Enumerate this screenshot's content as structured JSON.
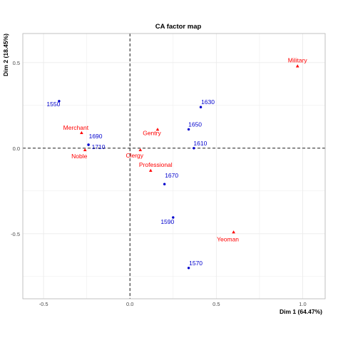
{
  "chart_data": {
    "type": "scatter",
    "title": "CA factor map",
    "xlabel": "Dim 1 (64.47%)",
    "ylabel": "Dim 2 (18.45%)",
    "xlim": [
      -0.62,
      1.13
    ],
    "ylim": [
      -0.88,
      0.67
    ],
    "x_ticks": [
      -0.5,
      0.0,
      0.5,
      1.0
    ],
    "x_tick_labels": [
      "-0.5",
      "0.0",
      "0.5",
      "1.0"
    ],
    "y_ticks": [
      -0.5,
      0.0,
      0.5
    ],
    "y_tick_labels": [
      "-0.5",
      "0.0",
      "0.5"
    ],
    "grid": true,
    "reference_lines": {
      "x": 0,
      "y": 0,
      "style": "dashed"
    },
    "colors": {
      "rows": "#0000cd",
      "columns": "#ff0000",
      "grid": "#ebebeb",
      "panel_border": "#b3b3b3"
    },
    "series": [
      {
        "marker": "circle",
        "color": "#0000cd",
        "points": [
          {
            "label": "1550",
            "x": -0.41,
            "y": 0.275
          },
          {
            "label": "1690",
            "x": -0.24,
            "y": 0.02
          },
          {
            "label": "1710",
            "x": -0.24,
            "y": 0.02
          },
          {
            "label": "1630",
            "x": 0.41,
            "y": 0.24
          },
          {
            "label": "1650",
            "x": 0.34,
            "y": 0.11
          },
          {
            "label": "1610",
            "x": 0.37,
            "y": 0.0
          },
          {
            "label": "1670",
            "x": 0.2,
            "y": -0.21
          },
          {
            "label": "1590",
            "x": 0.25,
            "y": -0.405
          },
          {
            "label": "1570",
            "x": 0.34,
            "y": -0.7
          }
        ]
      },
      {
        "marker": "triangle",
        "color": "#ff0000",
        "points": [
          {
            "label": "Military",
            "x": 0.97,
            "y": 0.48
          },
          {
            "label": "Merchant",
            "x": -0.28,
            "y": 0.09
          },
          {
            "label": "Gentry",
            "x": 0.16,
            "y": 0.11
          },
          {
            "label": "Noble",
            "x": -0.26,
            "y": -0.01
          },
          {
            "label": "Clergy",
            "x": 0.06,
            "y": -0.01
          },
          {
            "label": "Professional",
            "x": 0.12,
            "y": -0.13
          },
          {
            "label": "Yeoman",
            "x": 0.6,
            "y": -0.49
          }
        ]
      }
    ]
  }
}
